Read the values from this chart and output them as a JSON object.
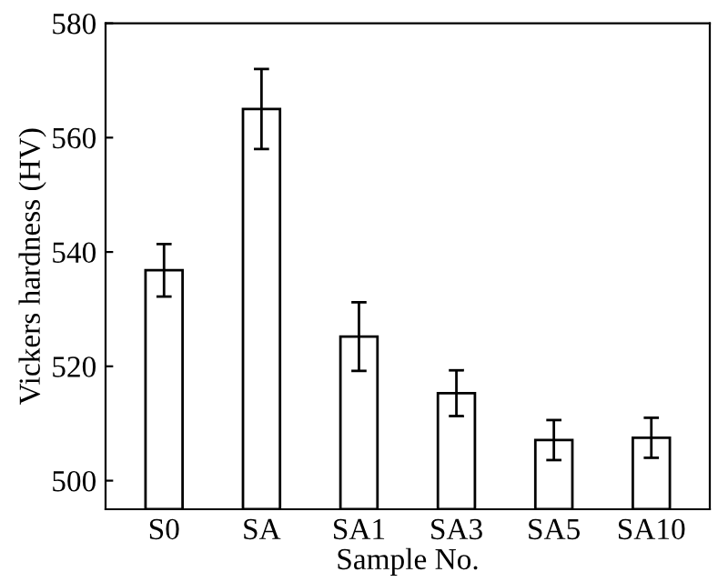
{
  "chart_data": {
    "type": "bar",
    "xlabel": "Sample No.",
    "ylabel": "Vickers hardness (HV)",
    "categories": [
      "S0",
      "SA",
      "SA1",
      "SA3",
      "SA5",
      "SA10"
    ],
    "values": [
      536.8,
      565.0,
      525.2,
      515.3,
      507.1,
      507.5
    ],
    "errors": [
      4.6,
      7,
      6,
      4,
      3.5,
      3.5
    ],
    "color": "#ffffff",
    "ylim": [
      495,
      580
    ],
    "yticks": [
      500,
      520,
      540,
      560,
      580
    ],
    "grid": false
  }
}
